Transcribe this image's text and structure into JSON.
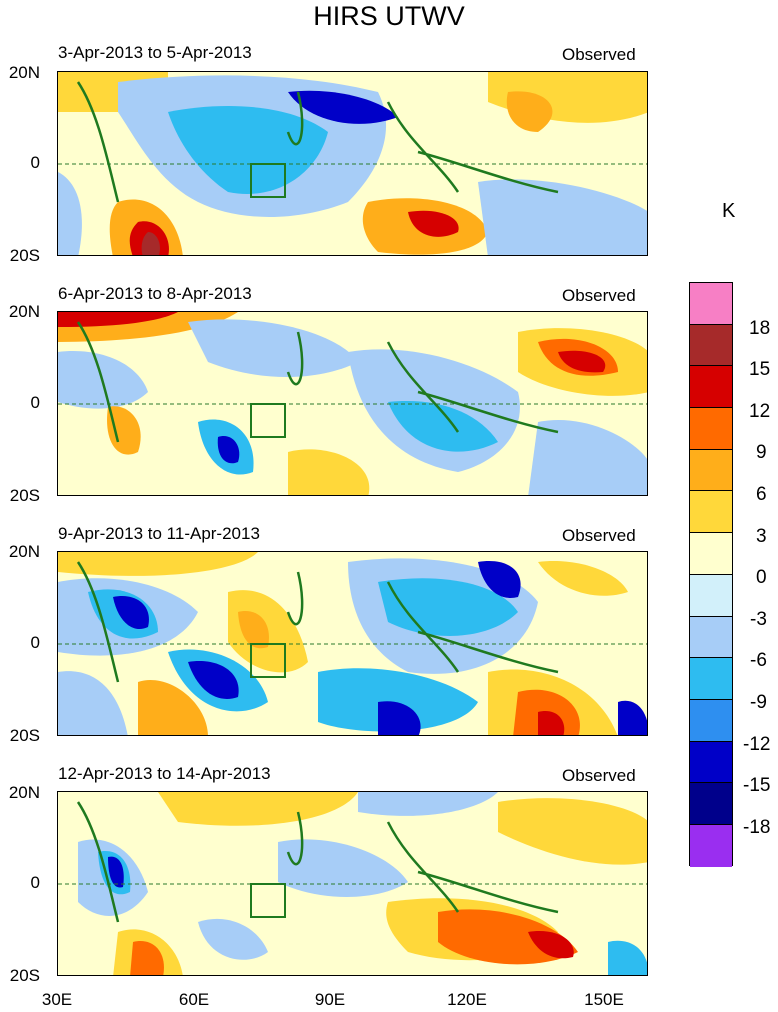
{
  "title": "HIRS UTWV",
  "panels": [
    {
      "date": "3-Apr-2013 to 5-Apr-2013",
      "tag": "Observed"
    },
    {
      "date": "6-Apr-2013 to 8-Apr-2013",
      "tag": "Observed"
    },
    {
      "date": "9-Apr-2013 to 11-Apr-2013",
      "tag": "Observed"
    },
    {
      "date": "12-Apr-2013 to 14-Apr-2013",
      "tag": "Observed"
    }
  ],
  "lat_labels": [
    "20N",
    "0",
    "20S"
  ],
  "lon_labels": [
    "30E",
    "60E",
    "90E",
    "120E",
    "150E"
  ],
  "colorbar": {
    "unit": "K",
    "labels": [
      "18",
      "15",
      "12",
      "9",
      "6",
      "3",
      "0",
      "-3",
      "-6",
      "-9",
      "-12",
      "-15",
      "-18"
    ],
    "colors": [
      "#f77fc5",
      "#a62a2a",
      "#d60000",
      "#ff6a00",
      "#ffae1a",
      "#ffd83a",
      "#ffffcf",
      "#d2f0fa",
      "#a7cdf7",
      "#2ebcf0",
      "#2e8ff0",
      "#0000c8",
      "#00008b",
      "#9a2ef0"
    ]
  }
}
